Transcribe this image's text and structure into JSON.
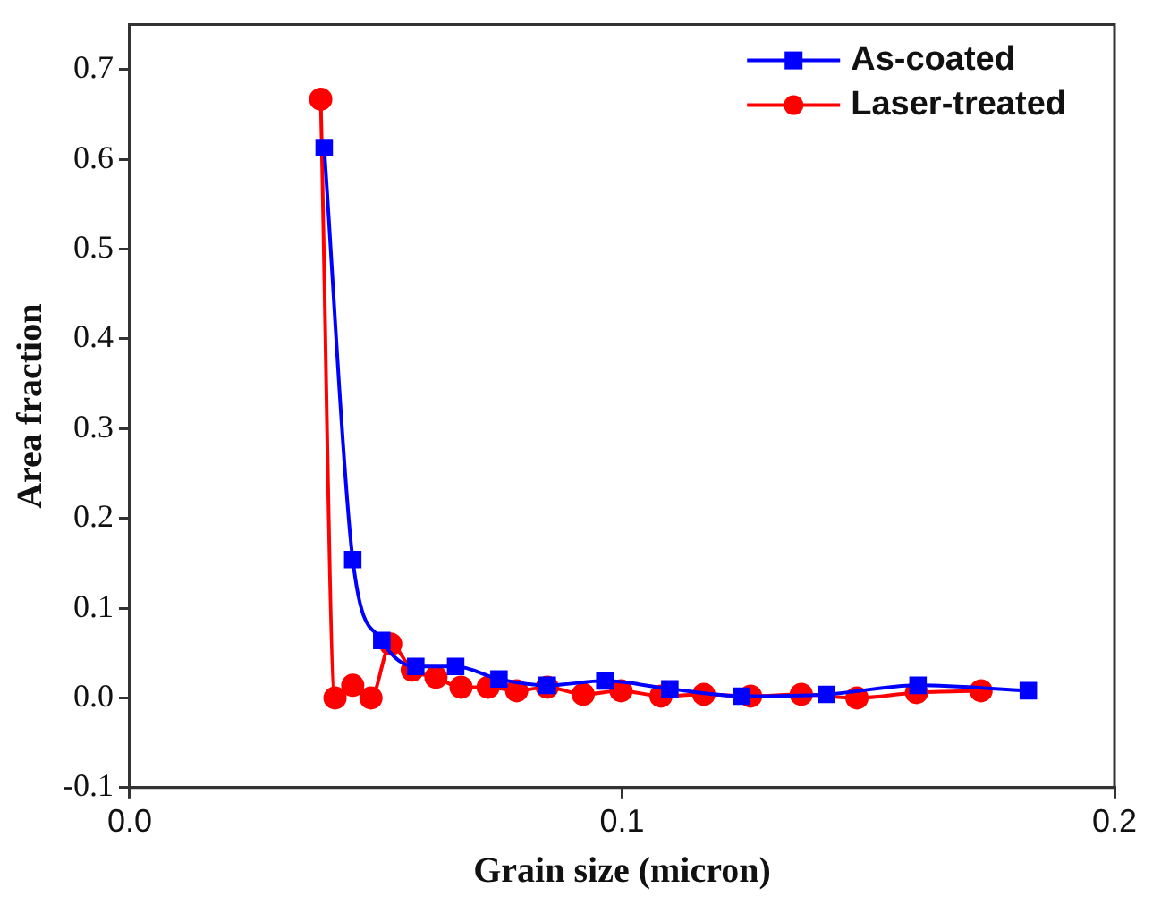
{
  "chart_data": {
    "type": "line",
    "xlabel": "Grain size (micron)",
    "ylabel": "Area fraction",
    "xlim": [
      0,
      0.2
    ],
    "xticks": [
      {
        "value": 0,
        "label": "0.0"
      },
      0.1,
      0.2
    ],
    "ylim": [
      -0.1,
      0.75
    ],
    "yticks": [
      -0.1,
      {
        "value": 0,
        "label": "0.0"
      },
      0.1,
      0.2,
      0.3,
      0.4,
      0.5,
      0.6,
      0.7
    ],
    "grid": false,
    "legend": "top right",
    "line_style": "solid",
    "series": [
      {
        "name": "As-coated",
        "color": "#0000ff",
        "marker": "square",
        "x": [
          0.0395,
          0.0453,
          0.0512,
          0.0581,
          0.0662,
          0.075,
          0.0848,
          0.0965,
          0.1097,
          0.1243,
          0.1415,
          0.1601,
          0.1825
        ],
        "values": [
          0.613,
          0.154,
          0.064,
          0.035,
          0.035,
          0.021,
          0.014,
          0.019,
          0.01,
          0.002,
          0.004,
          0.014,
          0.008
        ]
      },
      {
        "name": "Laser-treated",
        "color": "#ff0000",
        "marker": "circle",
        "x": [
          0.0388,
          0.0417,
          0.0453,
          0.049,
          0.053,
          0.0574,
          0.0622,
          0.0673,
          0.0728,
          0.0786,
          0.0848,
          0.0921,
          0.0998,
          0.1079,
          0.1166,
          0.1261,
          0.1364,
          0.1477,
          0.1598,
          0.1729
        ],
        "values": [
          0.667,
          0.0,
          0.014,
          0.0,
          0.06,
          0.031,
          0.023,
          0.012,
          0.012,
          0.008,
          0.012,
          0.004,
          0.008,
          0.002,
          0.004,
          0.002,
          0.004,
          0.0,
          0.006,
          0.008
        ]
      }
    ]
  }
}
